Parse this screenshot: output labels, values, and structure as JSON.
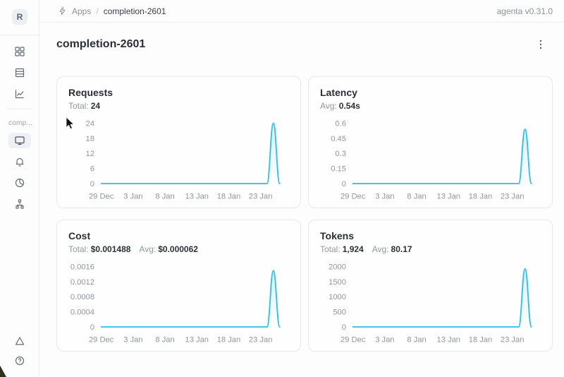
{
  "header": {
    "breadcrumb": {
      "apps_label": "Apps",
      "separator": "/",
      "current": "completion-2601"
    },
    "version_label": "agenta v0.31.0"
  },
  "sidebar": {
    "logo_letter": "R",
    "workspace_label": "comp...",
    "nav_top_icons": [
      "grid-icon",
      "table-rows-icon",
      "line-chart-icon"
    ],
    "nav_app_icons": [
      "monitor-icon",
      "bell-icon",
      "donut-chart-icon",
      "tree-icon"
    ],
    "nav_app_selected": "monitor-icon",
    "nav_bottom_icons": [
      "triangle-icon",
      "help-icon"
    ]
  },
  "page": {
    "title": "completion-2601"
  },
  "theme": {
    "accent_line": "#3bc0e0",
    "accent_fill_top": "rgba(59,192,224,0.22)",
    "tick_text": "#8f969e"
  },
  "chart_data": [
    {
      "id": "requests",
      "type": "line",
      "title": "Requests",
      "stats": [
        {
          "label": "Total:",
          "value": "24"
        }
      ],
      "ylabel": "",
      "xlabel": "",
      "yticks": [
        "24",
        "18",
        "12",
        "6",
        "0"
      ],
      "ymax": 24,
      "ylim": [
        0,
        24
      ],
      "x_tick_labels": [
        "29 Dec",
        "3 Jan",
        "8 Jan",
        "13 Jan",
        "18 Jan",
        "23 Jan"
      ],
      "x_tick_days": [
        0,
        5,
        10,
        15,
        20,
        25
      ],
      "x_domain": [
        0,
        28.6
      ],
      "points": [
        [
          0,
          0
        ],
        [
          26,
          0
        ],
        [
          27,
          24
        ],
        [
          28,
          0
        ]
      ],
      "legend": null,
      "grid": false
    },
    {
      "id": "latency",
      "type": "line",
      "title": "Latency",
      "stats": [
        {
          "label": "Avg:",
          "value": "0.54s"
        }
      ],
      "ylabel": "",
      "xlabel": "",
      "yticks": [
        "0.6",
        "0.45",
        "0.3",
        "0.15",
        "0"
      ],
      "ymax": 0.6,
      "ylim": [
        0,
        0.6
      ],
      "x_tick_labels": [
        "29 Dec",
        "3 Jan",
        "8 Jan",
        "13 Jan",
        "18 Jan",
        "23 Jan"
      ],
      "x_tick_days": [
        0,
        5,
        10,
        15,
        20,
        25
      ],
      "x_domain": [
        0,
        28.6
      ],
      "points": [
        [
          0,
          0
        ],
        [
          26,
          0
        ],
        [
          27,
          0.54
        ],
        [
          28,
          0
        ]
      ],
      "legend": null,
      "grid": false
    },
    {
      "id": "cost",
      "type": "line",
      "title": "Cost",
      "stats": [
        {
          "label": "Total:",
          "value": "$0.001488"
        },
        {
          "label": "Avg:",
          "value": "$0.000062"
        }
      ],
      "ylabel": "",
      "xlabel": "",
      "yticks": [
        "0.0016",
        "0.0012",
        "0.0008",
        "0.0004",
        "0"
      ],
      "ymax": 0.0016,
      "ylim": [
        0,
        0.0016
      ],
      "x_tick_labels": [
        "29 Dec",
        "3 Jan",
        "8 Jan",
        "13 Jan",
        "18 Jan",
        "23 Jan"
      ],
      "x_tick_days": [
        0,
        5,
        10,
        15,
        20,
        25
      ],
      "x_domain": [
        0,
        28.6
      ],
      "points": [
        [
          0,
          0
        ],
        [
          26,
          0
        ],
        [
          27,
          0.001488
        ],
        [
          28,
          0
        ]
      ],
      "legend": null,
      "grid": false
    },
    {
      "id": "tokens",
      "type": "line",
      "title": "Tokens",
      "stats": [
        {
          "label": "Total:",
          "value": "1,924"
        },
        {
          "label": "Avg:",
          "value": "80.17"
        }
      ],
      "ylabel": "",
      "xlabel": "",
      "yticks": [
        "2000",
        "1500",
        "1000",
        "500",
        "0"
      ],
      "ymax": 2000,
      "ylim": [
        0,
        2000
      ],
      "x_tick_labels": [
        "29 Dec",
        "3 Jan",
        "8 Jan",
        "13 Jan",
        "18 Jan",
        "23 Jan"
      ],
      "x_tick_days": [
        0,
        5,
        10,
        15,
        20,
        25
      ],
      "x_domain": [
        0,
        28.6
      ],
      "points": [
        [
          0,
          0
        ],
        [
          26,
          0
        ],
        [
          27,
          1924
        ],
        [
          28,
          0
        ]
      ],
      "legend": null,
      "grid": false
    }
  ]
}
